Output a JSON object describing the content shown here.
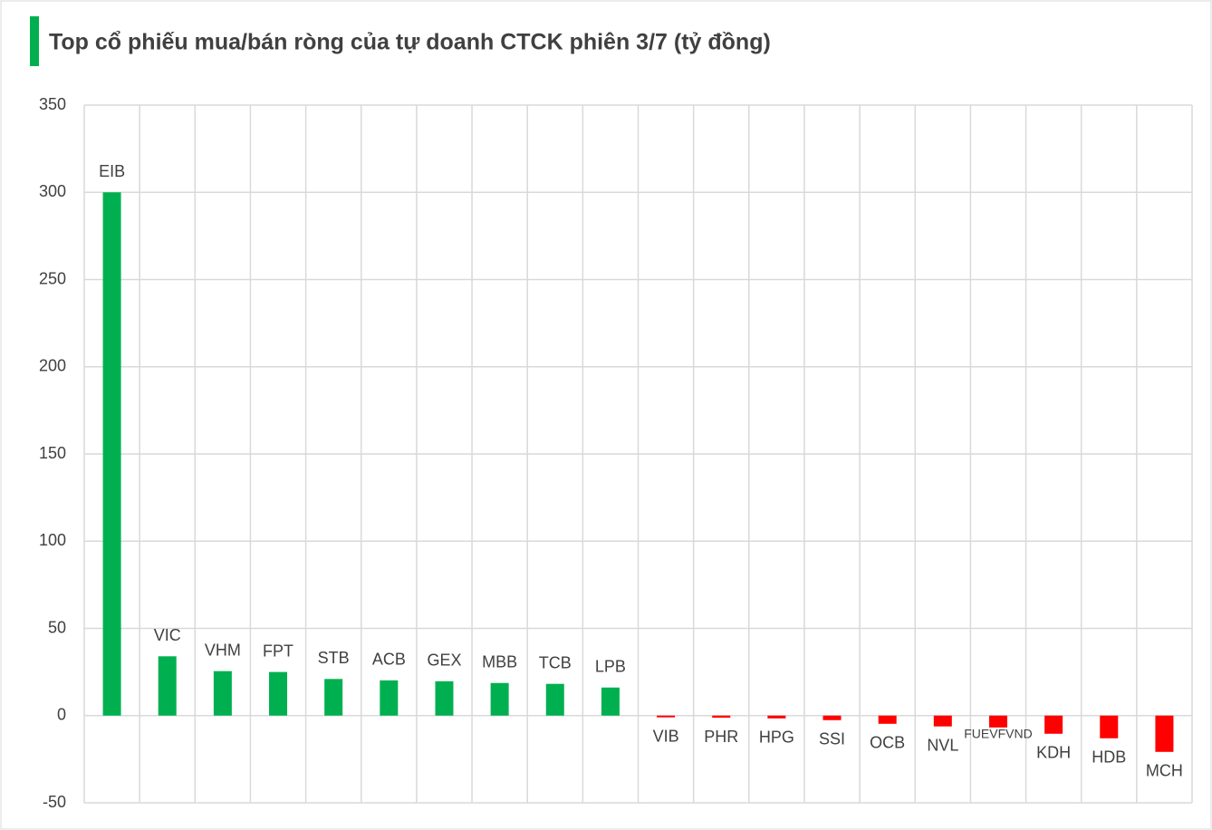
{
  "chart_data": {
    "type": "bar",
    "title": "Top cổ phiếu mua/bán ròng của tự doanh CTCK phiên 3/7 (tỷ đồng)",
    "categories": [
      "EIB",
      "VIC",
      "VHM",
      "FPT",
      "STB",
      "ACB",
      "GEX",
      "MBB",
      "TCB",
      "LPB",
      "VIB",
      "PHR",
      "HPG",
      "SSI",
      "OCB",
      "NVL",
      "FUEVFVND",
      "KDH",
      "HDB",
      "MCH"
    ],
    "values": [
      300,
      34,
      25.5,
      25,
      21,
      20.2,
      19.7,
      18.7,
      18.2,
      16.1,
      -1,
      -1.2,
      -1.6,
      -2.6,
      -4.7,
      -6.2,
      -6.8,
      -10.4,
      -13,
      -20.8
    ],
    "positive_color": "#00b050",
    "negative_color": "#ff0000",
    "ylim": [
      -50,
      350
    ],
    "yticks": [
      -50,
      0,
      50,
      100,
      150,
      200,
      250,
      300,
      350
    ],
    "grid": true
  }
}
